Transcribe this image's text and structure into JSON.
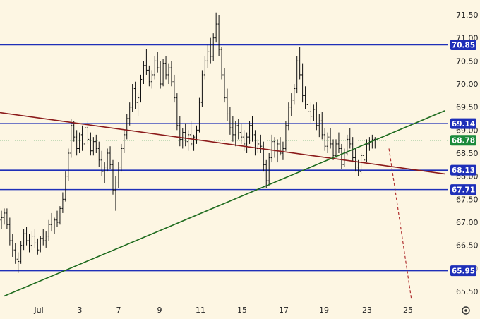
{
  "chart_data": {
    "type": "candlestick",
    "title": "",
    "xlabel": "",
    "ylabel": "",
    "ylim": [
      65.1,
      71.65
    ],
    "x_ticks": [
      "Jul",
      "3",
      "7",
      "9",
      "11",
      "15",
      "17",
      "19",
      "23",
      "25"
    ],
    "y_ticks": [
      {
        "value": 65.5,
        "label": "65.50"
      },
      {
        "value": 66.0,
        "label": "66.00"
      },
      {
        "value": 66.5,
        "label": "66.50"
      },
      {
        "value": 67.0,
        "label": "67.00"
      },
      {
        "value": 67.5,
        "label": "67.50"
      },
      {
        "value": 68.0,
        "label": "68.00"
      },
      {
        "value": 68.5,
        "label": "68.50"
      },
      {
        "value": 69.0,
        "label": "69.00"
      },
      {
        "value": 69.5,
        "label": "69.50"
      },
      {
        "value": 70.0,
        "label": "70.00"
      },
      {
        "value": 70.5,
        "label": "70.50"
      },
      {
        "value": 71.0,
        "label": "71.00"
      },
      {
        "value": 71.5,
        "label": "71.50"
      }
    ],
    "horizontal_levels": [
      {
        "value": 70.85,
        "label": "70.85",
        "color": "#1e2fb8"
      },
      {
        "value": 69.14,
        "label": "69.14",
        "color": "#1e2fb8"
      },
      {
        "value": 68.13,
        "label": "68.13",
        "color": "#1e2fb8"
      },
      {
        "value": 67.71,
        "label": "67.71",
        "color": "#1e2fb8"
      },
      {
        "value": 65.95,
        "label": "65.95",
        "color": "#1e2fb8"
      }
    ],
    "last_price": {
      "value": 68.78,
      "label": "68.78",
      "color": "#1a8a3a"
    },
    "trendlines": [
      {
        "name": "descending",
        "color": "#8b1a1a",
        "from": {
          "bar": -3,
          "value": 69.4
        },
        "to": {
          "bar": 159,
          "value": 68.05
        }
      },
      {
        "name": "ascending",
        "color": "#1e6b1e",
        "from": {
          "bar": 1,
          "value": 65.4
        },
        "to": {
          "bar": 159,
          "value": 69.42
        }
      }
    ],
    "projection": {
      "color": "#b03030",
      "style": "dashed",
      "from": {
        "bar": 139,
        "value": 68.6
      },
      "to": {
        "bar": 147,
        "value": 65.35
      }
    },
    "candles": [
      [
        67.05,
        67.25,
        66.85,
        67.1
      ],
      [
        67.1,
        67.3,
        66.95,
        67.2
      ],
      [
        67.2,
        67.3,
        66.85,
        66.95
      ],
      [
        66.95,
        67.1,
        66.5,
        66.6
      ],
      [
        66.6,
        66.75,
        66.25,
        66.4
      ],
      [
        66.4,
        66.55,
        66.1,
        66.2
      ],
      [
        66.2,
        66.35,
        65.9,
        66.15
      ],
      [
        66.15,
        66.6,
        66.1,
        66.5
      ],
      [
        66.5,
        66.85,
        66.4,
        66.75
      ],
      [
        66.75,
        66.9,
        66.5,
        66.6
      ],
      [
        66.6,
        66.75,
        66.35,
        66.5
      ],
      [
        66.5,
        66.8,
        66.4,
        66.7
      ],
      [
        66.7,
        66.85,
        66.45,
        66.55
      ],
      [
        66.55,
        66.65,
        66.3,
        66.4
      ],
      [
        66.4,
        66.7,
        66.35,
        66.65
      ],
      [
        66.65,
        66.85,
        66.5,
        66.6
      ],
      [
        66.6,
        66.8,
        66.45,
        66.7
      ],
      [
        66.7,
        67.05,
        66.6,
        66.95
      ],
      [
        66.95,
        67.2,
        66.8,
        66.9
      ],
      [
        66.9,
        67.1,
        66.75,
        67.05
      ],
      [
        67.05,
        67.25,
        66.9,
        67.0
      ],
      [
        67.0,
        67.35,
        66.95,
        67.3
      ],
      [
        67.3,
        67.65,
        67.2,
        67.5
      ],
      [
        67.5,
        68.1,
        67.45,
        68.0
      ],
      [
        68.0,
        68.6,
        67.9,
        68.5
      ],
      [
        68.5,
        69.25,
        68.4,
        69.1
      ],
      [
        69.1,
        69.2,
        68.75,
        68.85
      ],
      [
        68.85,
        69.0,
        68.45,
        68.6
      ],
      [
        68.6,
        68.95,
        68.5,
        68.9
      ],
      [
        68.9,
        69.1,
        68.55,
        68.7
      ],
      [
        68.7,
        69.15,
        68.6,
        69.05
      ],
      [
        69.05,
        69.2,
        68.7,
        68.8
      ],
      [
        68.8,
        68.95,
        68.45,
        68.55
      ],
      [
        68.55,
        68.85,
        68.45,
        68.75
      ],
      [
        68.75,
        68.9,
        68.5,
        68.6
      ],
      [
        68.6,
        68.75,
        68.2,
        68.35
      ],
      [
        68.35,
        68.55,
        68.0,
        68.1
      ],
      [
        68.1,
        68.3,
        67.85,
        68.2
      ],
      [
        68.2,
        68.6,
        68.1,
        68.5
      ],
      [
        68.5,
        68.65,
        68.15,
        68.25
      ],
      [
        68.25,
        68.35,
        67.6,
        67.7
      ],
      [
        67.7,
        68.0,
        67.25,
        67.85
      ],
      [
        67.85,
        68.3,
        67.75,
        68.2
      ],
      [
        68.2,
        68.7,
        68.1,
        68.6
      ],
      [
        68.6,
        69.0,
        68.5,
        68.9
      ],
      [
        68.9,
        69.35,
        68.8,
        69.25
      ],
      [
        69.25,
        69.6,
        69.1,
        69.5
      ],
      [
        69.5,
        70.0,
        69.4,
        69.9
      ],
      [
        69.9,
        70.05,
        69.45,
        69.6
      ],
      [
        69.6,
        69.8,
        69.3,
        69.7
      ],
      [
        69.7,
        70.2,
        69.6,
        70.1
      ],
      [
        70.1,
        70.5,
        70.0,
        70.4
      ],
      [
        70.4,
        70.75,
        70.2,
        70.3
      ],
      [
        70.3,
        70.4,
        69.95,
        70.05
      ],
      [
        70.05,
        70.3,
        69.9,
        70.2
      ],
      [
        70.2,
        70.6,
        70.1,
        70.5
      ],
      [
        70.5,
        70.7,
        70.25,
        70.35
      ],
      [
        70.35,
        70.5,
        69.9,
        70.0
      ],
      [
        70.0,
        70.55,
        69.95,
        70.45
      ],
      [
        70.45,
        70.6,
        70.1,
        70.2
      ],
      [
        70.2,
        70.45,
        70.0,
        70.35
      ],
      [
        70.35,
        70.5,
        69.95,
        70.05
      ],
      [
        70.05,
        70.2,
        69.6,
        69.7
      ],
      [
        69.7,
        69.8,
        69.0,
        69.1
      ],
      [
        69.1,
        69.3,
        68.65,
        68.8
      ],
      [
        68.8,
        69.05,
        68.6,
        68.95
      ],
      [
        68.95,
        69.15,
        68.65,
        68.75
      ],
      [
        68.75,
        69.0,
        68.55,
        68.9
      ],
      [
        68.9,
        69.2,
        68.65,
        68.7
      ],
      [
        68.7,
        68.9,
        68.55,
        68.85
      ],
      [
        68.85,
        69.1,
        68.7,
        69.0
      ],
      [
        69.0,
        69.7,
        68.95,
        69.6
      ],
      [
        69.6,
        70.3,
        69.5,
        70.2
      ],
      [
        70.2,
        70.6,
        70.1,
        70.5
      ],
      [
        70.5,
        70.85,
        70.35,
        70.7
      ],
      [
        70.7,
        71.0,
        70.45,
        70.6
      ],
      [
        70.6,
        71.1,
        70.5,
        71.0
      ],
      [
        71.0,
        71.55,
        70.9,
        71.3
      ],
      [
        71.3,
        71.5,
        70.6,
        70.75
      ],
      [
        70.75,
        70.8,
        70.1,
        70.2
      ],
      [
        70.2,
        70.35,
        69.6,
        69.7
      ],
      [
        69.7,
        69.9,
        69.2,
        69.35
      ],
      [
        69.35,
        69.5,
        68.9,
        69.05
      ],
      [
        69.05,
        69.3,
        68.75,
        68.9
      ],
      [
        68.9,
        69.2,
        68.65,
        69.1
      ],
      [
        69.1,
        69.25,
        68.8,
        68.95
      ],
      [
        68.95,
        69.15,
        68.7,
        68.85
      ],
      [
        68.85,
        69.0,
        68.55,
        68.7
      ],
      [
        68.7,
        68.95,
        68.5,
        68.85
      ],
      [
        68.85,
        69.2,
        68.7,
        69.1
      ],
      [
        69.1,
        69.3,
        68.75,
        68.9
      ],
      [
        68.9,
        69.0,
        68.45,
        68.6
      ],
      [
        68.6,
        68.8,
        68.5,
        68.7
      ],
      [
        68.7,
        68.9,
        68.5,
        68.65
      ],
      [
        68.65,
        68.75,
        68.1,
        68.25
      ],
      [
        68.25,
        68.35,
        67.75,
        67.9
      ],
      [
        67.9,
        68.5,
        67.8,
        68.4
      ],
      [
        68.4,
        68.9,
        68.3,
        68.75
      ],
      [
        68.75,
        68.85,
        68.4,
        68.55
      ],
      [
        68.55,
        68.8,
        68.3,
        68.7
      ],
      [
        68.7,
        68.85,
        68.45,
        68.5
      ],
      [
        68.5,
        68.75,
        68.35,
        68.6
      ],
      [
        68.6,
        69.2,
        68.55,
        69.1
      ],
      [
        69.1,
        69.6,
        69.0,
        69.5
      ],
      [
        69.5,
        69.8,
        69.3,
        69.65
      ],
      [
        69.65,
        70.0,
        69.55,
        69.9
      ],
      [
        69.9,
        70.6,
        69.8,
        70.5
      ],
      [
        70.5,
        70.8,
        70.1,
        70.2
      ],
      [
        70.2,
        70.45,
        69.6,
        69.75
      ],
      [
        69.75,
        69.95,
        69.45,
        69.55
      ],
      [
        69.55,
        69.7,
        69.3,
        69.4
      ],
      [
        69.4,
        69.6,
        69.15,
        69.3
      ],
      [
        69.3,
        69.55,
        69.2,
        69.45
      ],
      [
        69.45,
        69.6,
        69.0,
        69.1
      ],
      [
        69.1,
        69.35,
        68.85,
        69.2
      ],
      [
        69.2,
        69.4,
        68.8,
        68.9
      ],
      [
        68.9,
        69.05,
        68.55,
        68.65
      ],
      [
        68.65,
        68.95,
        68.5,
        68.85
      ],
      [
        68.85,
        69.05,
        68.6,
        68.7
      ],
      [
        68.7,
        68.8,
        68.35,
        68.45
      ],
      [
        68.45,
        68.8,
        68.4,
        68.7
      ],
      [
        68.7,
        68.95,
        68.5,
        68.6
      ],
      [
        68.6,
        68.7,
        68.15,
        68.25
      ],
      [
        68.25,
        68.6,
        68.2,
        68.5
      ],
      [
        68.5,
        68.9,
        68.45,
        68.8
      ],
      [
        68.8,
        69.05,
        68.6,
        68.7
      ],
      [
        68.7,
        68.85,
        68.3,
        68.4
      ],
      [
        68.4,
        68.6,
        68.1,
        68.2
      ],
      [
        68.2,
        68.35,
        68.0,
        68.1
      ],
      [
        68.1,
        68.5,
        68.05,
        68.45
      ],
      [
        68.45,
        68.65,
        68.25,
        68.35
      ],
      [
        68.35,
        68.8,
        68.3,
        68.7
      ],
      [
        68.7,
        68.85,
        68.55,
        68.75
      ],
      [
        68.75,
        68.9,
        68.6,
        68.8
      ],
      [
        68.8,
        68.85,
        68.6,
        68.78
      ]
    ]
  }
}
